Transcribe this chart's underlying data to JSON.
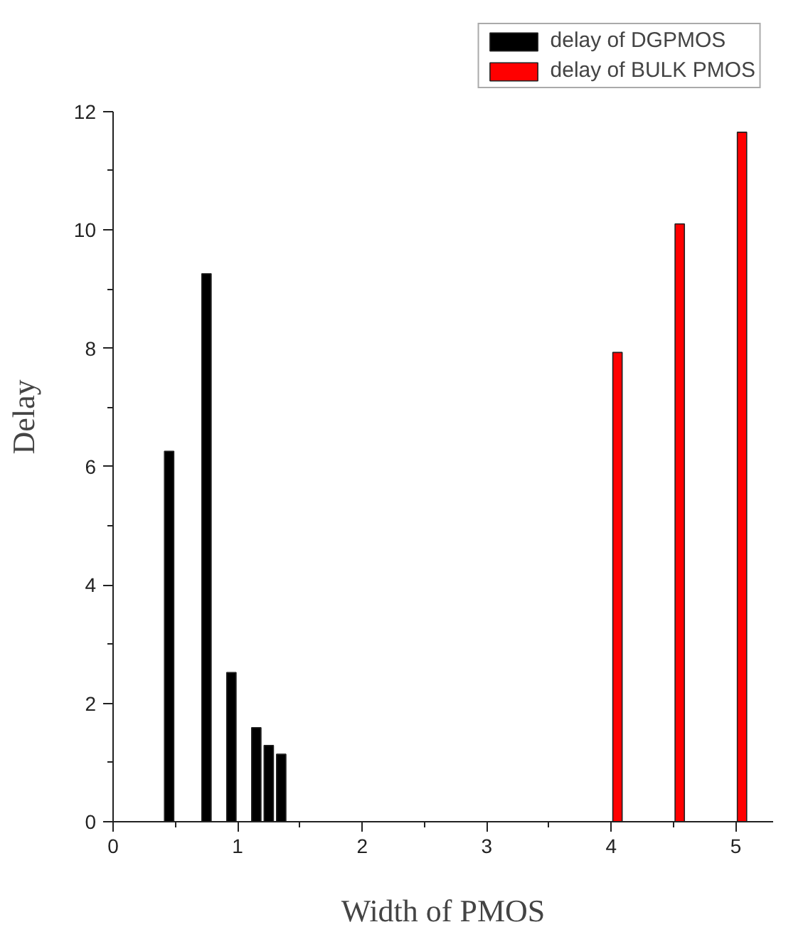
{
  "chart_data": {
    "type": "bar",
    "xlabel": "Width of PMOS",
    "ylabel": "Delay",
    "series": [
      {
        "name": "delay of DGPMOS",
        "color": "#000000",
        "x": [
          0.45,
          0.75,
          0.95,
          1.15,
          1.25,
          1.35
        ],
        "values": [
          6.26,
          9.26,
          2.52,
          1.59,
          1.29,
          1.14
        ]
      },
      {
        "name": "delay of BULK PMOS",
        "color": "#ff0000",
        "x": [
          4.05,
          4.55,
          5.05
        ],
        "values": [
          7.93,
          10.1,
          11.65
        ]
      }
    ],
    "xlim": [
      0,
      5.3
    ],
    "ylim": [
      0,
      12
    ],
    "xticks": [
      0,
      {
        "value": 0.5,
        "label": null
      },
      1,
      {
        "value": 1.5,
        "label": null
      },
      2,
      {
        "value": 2.5,
        "label": null
      },
      3,
      {
        "value": 3.5,
        "label": null
      },
      4,
      {
        "value": 4.5,
        "label": null
      },
      5
    ],
    "yticks": [
      0,
      {
        "value": 1,
        "label": null
      },
      2,
      {
        "value": 3,
        "label": null
      },
      4,
      {
        "value": 5,
        "label": null
      },
      6,
      {
        "value": 7,
        "label": null
      },
      8,
      {
        "value": 9,
        "label": null
      },
      10,
      {
        "value": 11,
        "label": null
      },
      12
    ],
    "grid": false,
    "legend": "top right"
  }
}
